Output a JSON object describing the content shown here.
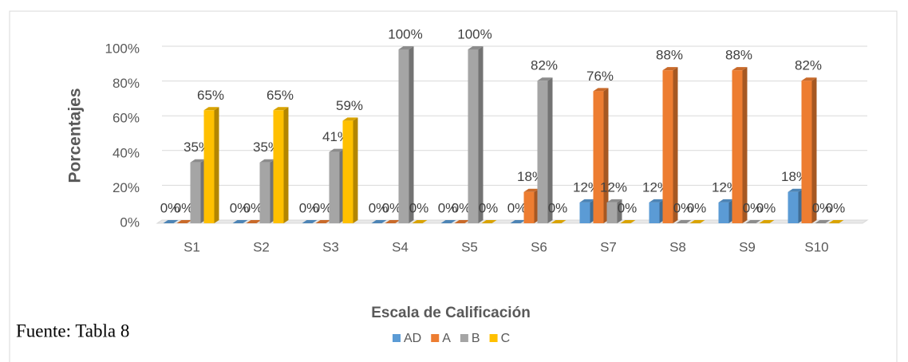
{
  "chart_data": {
    "type": "bar3d",
    "x_label": "Escala de Calificación",
    "y_label": "Porcentajes",
    "source": "Fuente: Tabla 8",
    "categories": [
      "S1",
      "S2",
      "S3",
      "S4",
      "S5",
      "S6",
      "S7",
      "S8",
      "S9",
      "S10"
    ],
    "series": [
      {
        "name": "AD",
        "color": "#5b9bd5",
        "values": [
          0,
          0,
          0,
          0,
          0,
          0,
          12,
          12,
          12,
          18
        ],
        "value_labels": [
          "0%",
          "0%",
          "0%",
          "0%",
          "0%",
          "0%",
          "12%",
          "12%",
          "12%",
          "18%"
        ]
      },
      {
        "name": "A",
        "color": "#ed7d31",
        "values": [
          0,
          0,
          0,
          0,
          0,
          18,
          76,
          88,
          88,
          82
        ],
        "value_labels": [
          "0%",
          "0%",
          "0%",
          "0%",
          "0%",
          "18%",
          "76%",
          "88%",
          "88%",
          "82%"
        ]
      },
      {
        "name": "B",
        "color": "#a5a5a5",
        "values": [
          35,
          35,
          41,
          100,
          100,
          82,
          12,
          0,
          0,
          0
        ],
        "value_labels": [
          "35%",
          "35%",
          "41%",
          "100%",
          "100%",
          "82%",
          "12%",
          "0%",
          "0%",
          "0%"
        ]
      },
      {
        "name": "C",
        "color": "#ffc000",
        "values": [
          65,
          65,
          59,
          0,
          0,
          0,
          0,
          0,
          0,
          0
        ],
        "value_labels": [
          "65%",
          "65%",
          "59%",
          "0%",
          "0%",
          "0%",
          "0%",
          "0%",
          "0%",
          "0%"
        ]
      }
    ],
    "ylim": [
      0,
      100
    ],
    "yticks": [
      {
        "value": 0,
        "label": "0%"
      },
      {
        "value": 20,
        "label": "20%"
      },
      {
        "value": 40,
        "label": "40%"
      },
      {
        "value": 60,
        "label": "60%"
      },
      {
        "value": 80,
        "label": "80%"
      },
      {
        "value": 100,
        "label": "100%"
      }
    ],
    "grid": true,
    "legend": "bottom"
  }
}
